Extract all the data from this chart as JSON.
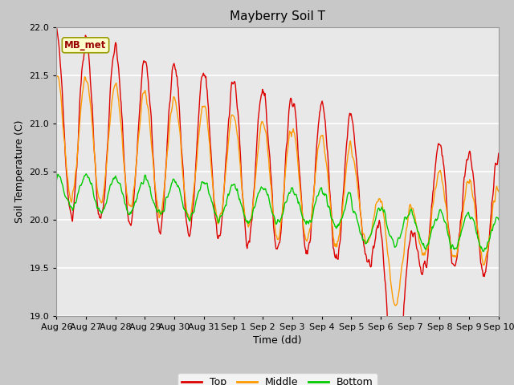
{
  "title": "Mayberry Soil T",
  "xlabel": "Time (dd)",
  "ylabel": "Soil Temperature (C)",
  "ylim": [
    19.0,
    22.0
  ],
  "yticks": [
    19.0,
    19.5,
    20.0,
    20.5,
    21.0,
    21.5,
    22.0
  ],
  "xlabels": [
    "Aug 26",
    "Aug 27",
    "Aug 28",
    "Aug 29",
    "Aug 30",
    "Aug 31",
    "Sep 1",
    "Sep 2",
    "Sep 3",
    "Sep 4",
    "Sep 5",
    "Sep 6",
    "Sep 7",
    "Sep 8",
    "Sep 9",
    "Sep 10"
  ],
  "legend_labels": [
    "Top",
    "Middle",
    "Bottom"
  ],
  "line_colors": [
    "#dd0000",
    "#ff9900",
    "#00cc00"
  ],
  "fig_bg": "#c8c8c8",
  "plot_bg": "#e8e8e8",
  "annotation_text": "MB_met",
  "annotation_bg": "#ffffcc",
  "annotation_border": "#999900"
}
